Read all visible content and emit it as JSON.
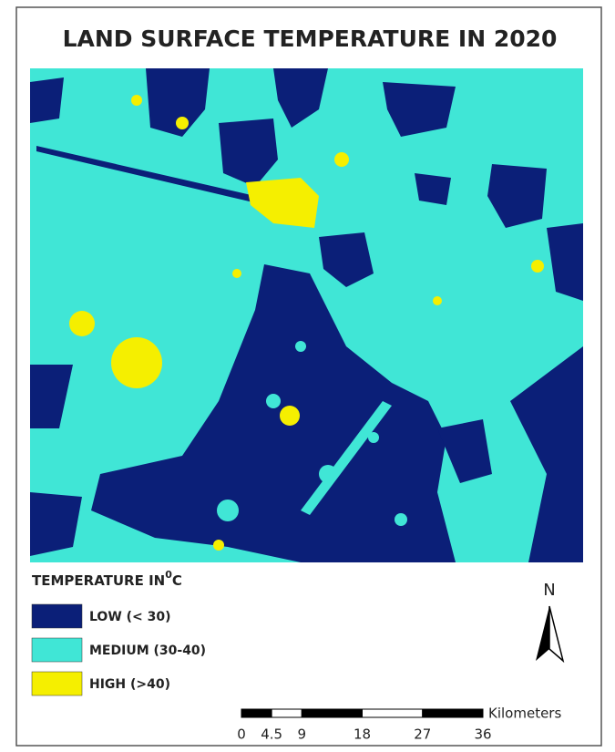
{
  "title": "LAND SURFACE TEMPERATURE IN 2020",
  "legend": {
    "title": "TEMPERATURE IN",
    "title_superscript": "0",
    "title_unit": "C",
    "items": [
      {
        "label": "LOW (< 30)",
        "color": "#0b1f78"
      },
      {
        "label": "MEDIUM (30-40)",
        "color": "#40e6d6"
      },
      {
        "label": "HIGH (>40)",
        "color": "#f5ef00"
      }
    ]
  },
  "north_arrow": "N",
  "scale_bar": {
    "unit": "Kilometers",
    "ticks": [
      0,
      4.5,
      9,
      18,
      27,
      36
    ]
  }
}
